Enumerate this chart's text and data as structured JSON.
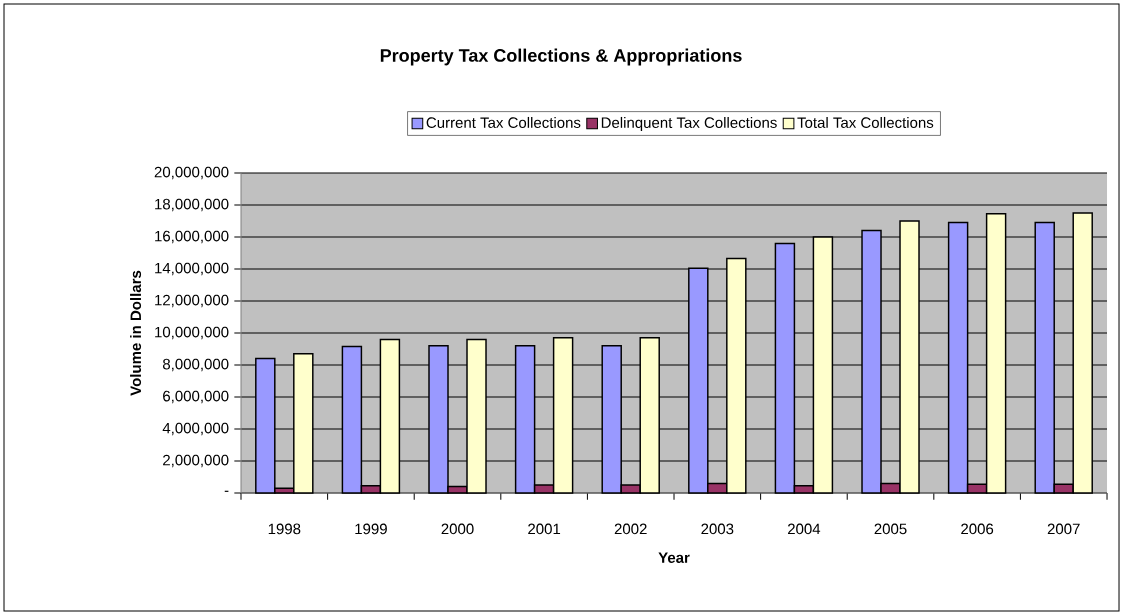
{
  "chart_data": {
    "type": "bar",
    "title": "Property Tax Collections & Appropriations",
    "xlabel": "Year",
    "ylabel": "Volume in Dollars",
    "categories": [
      "1998",
      "1999",
      "2000",
      "2001",
      "2002",
      "2003",
      "2004",
      "2005",
      "2006",
      "2007"
    ],
    "series": [
      {
        "name": "Current Tax Collections",
        "color": "#9999ff",
        "values": [
          8400000,
          9150000,
          9200000,
          9200000,
          9200000,
          14050000,
          15600000,
          16400000,
          16900000,
          16900000
        ]
      },
      {
        "name": "Delinquent Tax Collections",
        "color": "#993366",
        "values": [
          300000,
          450000,
          400000,
          500000,
          500000,
          600000,
          450000,
          600000,
          550000,
          550000
        ]
      },
      {
        "name": "Total Tax Collections",
        "color": "#ffffcc",
        "values": [
          8700000,
          9600000,
          9600000,
          9700000,
          9700000,
          14650000,
          16000000,
          17000000,
          17450000,
          17500000
        ]
      }
    ],
    "ylim": [
      0,
      20000000
    ],
    "yticks": [
      {
        "value": 0,
        "label": "-"
      },
      {
        "value": 2000000,
        "label": "2,000,000"
      },
      {
        "value": 4000000,
        "label": "4,000,000"
      },
      {
        "value": 6000000,
        "label": "6,000,000"
      },
      {
        "value": 8000000,
        "label": "8,000,000"
      },
      {
        "value": 10000000,
        "label": "10,000,000"
      },
      {
        "value": 12000000,
        "label": "12,000,000"
      },
      {
        "value": 14000000,
        "label": "14,000,000"
      },
      {
        "value": 16000000,
        "label": "16,000,000"
      },
      {
        "value": 18000000,
        "label": "18,000,000"
      },
      {
        "value": 20000000,
        "label": "20,000,000"
      }
    ],
    "grid": "y",
    "legend": "top"
  }
}
